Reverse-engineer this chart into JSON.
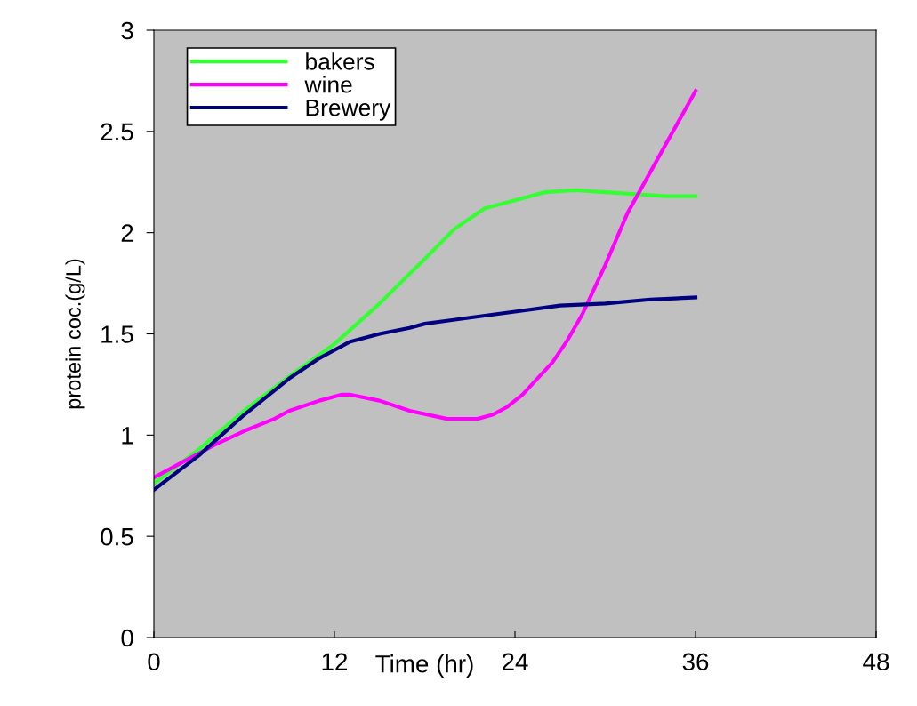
{
  "chart_data": {
    "type": "line",
    "xlabel": "Time (hr)",
    "ylabel": "protein coc.(g/L)",
    "xlim": [
      0,
      48
    ],
    "xticks": [
      0,
      12,
      24,
      36,
      48
    ],
    "ylim": [
      0,
      3
    ],
    "yticks": [
      0,
      0.5,
      1,
      1.5,
      2,
      2.5,
      3
    ],
    "grid": false,
    "legend": "top left",
    "marker": "none",
    "line_style": "solid",
    "series": [
      {
        "name": "bakers",
        "color": "#33ff33",
        "x": [
          0,
          3,
          6,
          9,
          12,
          15,
          18,
          20,
          22,
          24,
          26,
          28,
          30,
          32,
          34,
          36
        ],
        "values": [
          0.76,
          0.93,
          1.12,
          1.29,
          1.45,
          1.65,
          1.87,
          2.02,
          2.12,
          2.16,
          2.2,
          2.21,
          2.2,
          2.19,
          2.18,
          2.18
        ]
      },
      {
        "name": "wine",
        "color": "#ff00ff",
        "x": [
          0,
          2,
          4,
          6,
          8,
          9,
          11,
          12.5,
          13,
          15,
          17,
          19.5,
          21.5,
          22.5,
          23.5,
          24.5,
          25.5,
          26.5,
          27.5,
          28.5,
          30,
          31.5,
          33,
          34.5,
          36
        ],
        "values": [
          0.79,
          0.87,
          0.95,
          1.02,
          1.08,
          1.12,
          1.17,
          1.2,
          1.2,
          1.17,
          1.12,
          1.08,
          1.08,
          1.1,
          1.14,
          1.2,
          1.28,
          1.36,
          1.47,
          1.6,
          1.84,
          2.1,
          2.3,
          2.5,
          2.7
        ]
      },
      {
        "name": "Brewery",
        "color": "#000080",
        "x": [
          0,
          3,
          6,
          9,
          11,
          12,
          13,
          15,
          17,
          18,
          21,
          24,
          27,
          30,
          33,
          36
        ],
        "values": [
          0.73,
          0.9,
          1.1,
          1.28,
          1.38,
          1.42,
          1.46,
          1.5,
          1.53,
          1.55,
          1.58,
          1.61,
          1.64,
          1.65,
          1.67,
          1.68
        ]
      }
    ]
  }
}
